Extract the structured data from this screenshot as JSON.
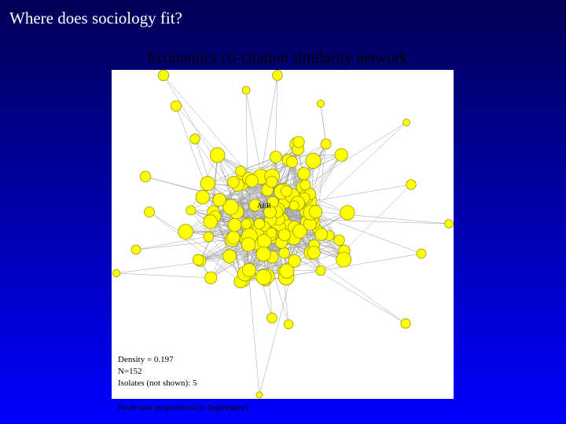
{
  "title": "Where does sociology fit?",
  "subtitle": "Economics co-citation similarity network",
  "network": {
    "hub_label": "AER",
    "notes": [
      "Density = 0.197",
      "N=152",
      "Isolates (not shown): 5"
    ]
  },
  "footnote": "Node size proportional to log(degree)"
}
